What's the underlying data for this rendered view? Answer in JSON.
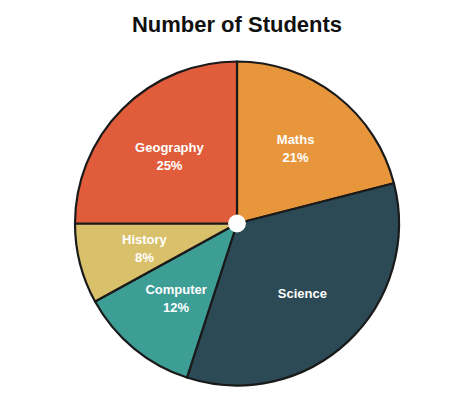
{
  "chart_data": {
    "type": "pie",
    "title": "Number of Students",
    "categories": [
      "Maths",
      "Science",
      "Computer",
      "History",
      "Geography"
    ],
    "values": [
      21,
      34,
      12,
      8,
      25
    ],
    "value_labels": [
      "21%",
      null,
      "12%",
      "8%",
      "25%"
    ],
    "data_labels": true,
    "colors": [
      "#E8963C",
      "#2B4A55",
      "#3D9E96",
      "#D9C06A",
      "#E05C3A"
    ]
  }
}
